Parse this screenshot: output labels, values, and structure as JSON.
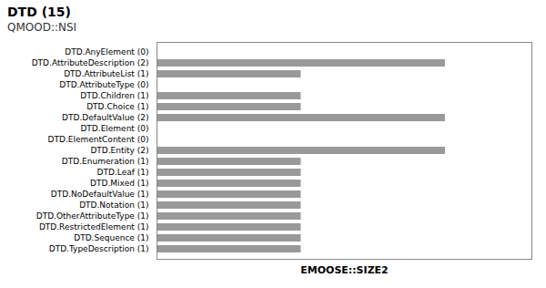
{
  "chart_data": {
    "type": "bar",
    "orientation": "horizontal",
    "title": "DTD (15)",
    "subtitle": "QMOOD::NSI",
    "xlabel": "EMOOSE::SIZE2",
    "categories": [
      "DTD.AnyElement (0)",
      "DTD.AttributeDescription (2)",
      "DTD.AttributeList (1)",
      "DTD.AttributeType (0)",
      "DTD.Children (1)",
      "DTD.Choice (1)",
      "DTD.DefaultValue (2)",
      "DTD.Element (0)",
      "DTD.ElementContent (0)",
      "DTD.Entity (2)",
      "DTD.Enumeration (1)",
      "DTD.Leaf (1)",
      "DTD.Mixed (1)",
      "DTD.NoDefaultValue (1)",
      "DTD.Notation (1)",
      "DTD.OtherAttributeType (1)",
      "DTD.RestrictedElement (1)",
      "DTD.Sequence (1)",
      "DTD.TypeDescription (1)"
    ],
    "values": [
      0,
      2,
      1,
      0,
      1,
      1,
      2,
      0,
      0,
      2,
      1,
      1,
      1,
      1,
      1,
      1,
      1,
      1,
      1
    ],
    "color": "#999999",
    "xlim": [
      0,
      2.6
    ],
    "tick_labels": "y",
    "grid": false
  }
}
